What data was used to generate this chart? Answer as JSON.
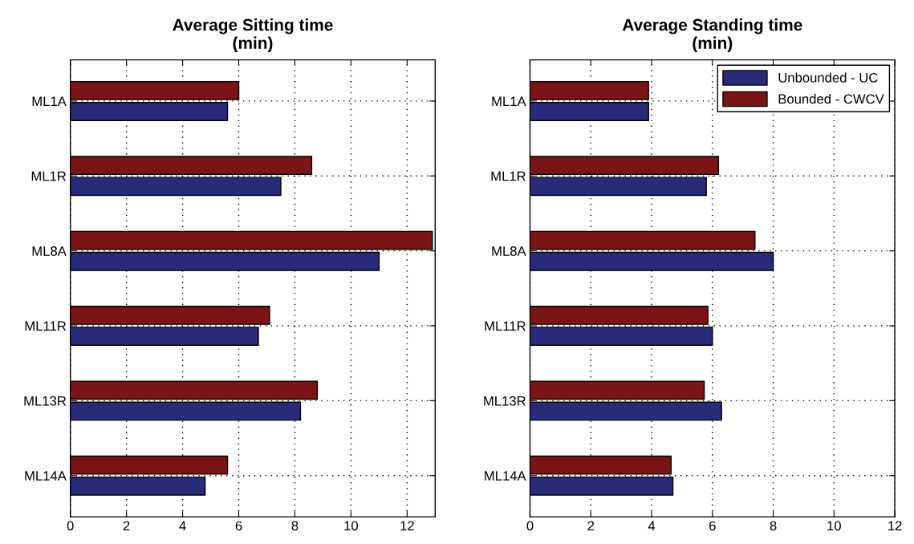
{
  "chart_data": [
    {
      "type": "bar",
      "orientation": "horizontal",
      "title": "Average Sitting time\n(min)",
      "categories": [
        "ML1A",
        "ML1R",
        "ML8A",
        "ML11R",
        "ML13R",
        "ML14A"
      ],
      "series": [
        {
          "color": "#2a2a7a",
          "values": [
            5.6,
            7.5,
            11.0,
            6.7,
            8.2,
            4.8
          ]
        },
        {
          "color": "#7b1416",
          "values": [
            6.0,
            8.6,
            12.9,
            7.1,
            8.8,
            5.6
          ]
        }
      ],
      "xlim": [
        0,
        13
      ],
      "xticks": [
        0,
        2,
        4,
        6,
        8,
        10,
        12
      ],
      "grid": true,
      "legend": false
    },
    {
      "type": "bar",
      "orientation": "horizontal",
      "title": "Average Standing time\n(min)",
      "categories": [
        "ML1A",
        "ML1R",
        "ML8A",
        "ML11R",
        "ML13R",
        "ML14A"
      ],
      "series": [
        {
          "name": "Unbounded - UC",
          "color": "#2a2a7a",
          "values": [
            3.9,
            5.8,
            8.0,
            6.0,
            6.3,
            4.7
          ]
        },
        {
          "name": "Bounded - CWCV",
          "color": "#7b1416",
          "values": [
            3.9,
            6.2,
            7.4,
            5.85,
            5.73,
            4.64
          ]
        }
      ],
      "xlim": [
        0,
        12
      ],
      "xticks": [
        0,
        2,
        4,
        6,
        8,
        10,
        12
      ],
      "grid": true,
      "legend": "top right"
    }
  ]
}
